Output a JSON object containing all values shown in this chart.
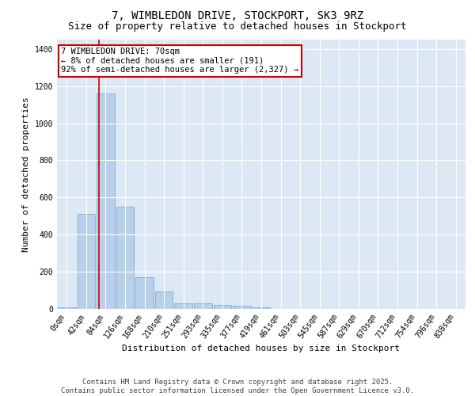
{
  "title": "7, WIMBLEDON DRIVE, STOCKPORT, SK3 9RZ",
  "subtitle": "Size of property relative to detached houses in Stockport",
  "xlabel": "Distribution of detached houses by size in Stockport",
  "ylabel": "Number of detached properties",
  "bar_labels": [
    "0sqm",
    "42sqm",
    "84sqm",
    "126sqm",
    "168sqm",
    "210sqm",
    "251sqm",
    "293sqm",
    "335sqm",
    "377sqm",
    "419sqm",
    "461sqm",
    "503sqm",
    "545sqm",
    "587sqm",
    "629sqm",
    "670sqm",
    "712sqm",
    "754sqm",
    "796sqm",
    "838sqm"
  ],
  "bar_values": [
    10,
    510,
    1160,
    550,
    170,
    95,
    28,
    28,
    20,
    15,
    10,
    0,
    0,
    0,
    0,
    0,
    0,
    0,
    0,
    0,
    0
  ],
  "bar_color": "#b8d0ea",
  "bar_edgecolor": "#7aaed4",
  "background_color": "#dde8f5",
  "grid_color": "#ffffff",
  "fig_background": "#ffffff",
  "ylim": [
    0,
    1450
  ],
  "yticks": [
    0,
    200,
    400,
    600,
    800,
    1000,
    1200,
    1400
  ],
  "red_line_x": 1.667,
  "annotation_text": "7 WIMBLEDON DRIVE: 70sqm\n← 8% of detached houses are smaller (191)\n92% of semi-detached houses are larger (2,327) →",
  "annotation_box_color": "#ffffff",
  "annotation_edge_color": "#cc0000",
  "footer_line1": "Contains HM Land Registry data © Crown copyright and database right 2025.",
  "footer_line2": "Contains public sector information licensed under the Open Government Licence v3.0.",
  "title_fontsize": 10,
  "subtitle_fontsize": 9,
  "axis_label_fontsize": 8,
  "tick_fontsize": 7,
  "annotation_fontsize": 7.5,
  "footer_fontsize": 6.5
}
